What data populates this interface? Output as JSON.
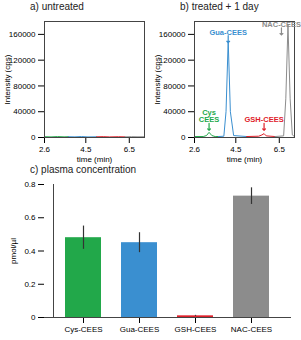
{
  "chart_data": [
    {
      "type": "line",
      "title": "a) untreated",
      "x_label": "time (min)",
      "y_label": "Intensity (cps)",
      "xlim": [
        2.6,
        7.2
      ],
      "ylim": [
        0,
        180000
      ],
      "xticks": [
        2.6,
        4.5,
        6.5
      ],
      "yticks": [
        0,
        40000,
        80000,
        120000,
        160000
      ],
      "series": [
        {
          "color": "#22a84a",
          "x": [
            2.6,
            2.9,
            3.2,
            3.5,
            3.7
          ],
          "values": [
            1200,
            900,
            1400,
            1000,
            1200
          ]
        },
        {
          "color": "#3a8fd0",
          "x": [
            3.7,
            4.0,
            4.3,
            4.6,
            5.0
          ],
          "values": [
            1200,
            1000,
            1500,
            900,
            1100
          ]
        },
        {
          "color": "#e0202a",
          "x": [
            5.0,
            5.3,
            5.6,
            6.0,
            6.3
          ],
          "values": [
            1100,
            1300,
            900,
            1200,
            1000
          ]
        },
        {
          "color": "#8c8c8c",
          "x": [
            6.3,
            6.6,
            6.9,
            7.2
          ],
          "values": [
            1000,
            1300,
            1100,
            1200
          ]
        }
      ]
    },
    {
      "type": "line",
      "title": "b) treated + 1 day",
      "x_label": "time (min)",
      "y_label": "Intensity (cps)",
      "xlim": [
        2.6,
        7.2
      ],
      "ylim": [
        0,
        180000
      ],
      "xticks": [
        2.6,
        4.5,
        6.5
      ],
      "yticks": [
        0,
        40000,
        80000,
        120000,
        160000
      ],
      "series": [
        {
          "color": "#22a84a",
          "x": [
            2.6,
            3.0,
            3.15,
            3.27,
            3.4,
            3.55,
            3.7
          ],
          "values": [
            1500,
            1500,
            3000,
            8000,
            3000,
            1500,
            1500
          ]
        },
        {
          "color": "#3a8fd0",
          "x": [
            3.7,
            3.95,
            4.05,
            4.15,
            4.25,
            4.4,
            5.0
          ],
          "values": [
            1500,
            2000,
            40000,
            150000,
            40000,
            3000,
            1500
          ]
        },
        {
          "color": "#e0202a",
          "x": [
            5.0,
            5.55,
            5.7,
            5.8,
            5.9,
            6.3
          ],
          "values": [
            1500,
            2000,
            4000,
            6000,
            2500,
            1500
          ]
        },
        {
          "color": "#8c8c8c",
          "x": [
            6.3,
            6.7,
            6.8,
            6.9,
            7.0,
            7.1,
            7.2
          ],
          "values": [
            1500,
            2500,
            60000,
            175000,
            60000,
            4000,
            1500
          ]
        }
      ],
      "annotations": [
        {
          "text": "Cys\nCEES",
          "x": 3.27,
          "y": 22000,
          "color": "#22a84a"
        },
        {
          "text": "Gua-CEES",
          "x": 4.15,
          "y": 158000,
          "color": "#3a8fd0"
        },
        {
          "text": "GSH-CEES",
          "x": 5.8,
          "y": 22000,
          "color": "#e0202a"
        },
        {
          "text": "NAC-CEES",
          "x": 6.6,
          "y": 170000,
          "color": "#8c8c8c"
        }
      ]
    },
    {
      "type": "bar",
      "title": "c) plasma concentration",
      "y_label": "pmol/µl",
      "categories": [
        "Cys-CEES",
        "Gua-CEES",
        "GSH-CEES",
        "NAC-CEES"
      ],
      "values": [
        0.48,
        0.45,
        0.01,
        0.73
      ],
      "errors": [
        0.07,
        0.06,
        0.003,
        0.05
      ],
      "colors": [
        "#22a84a",
        "#3a8fd0",
        "#e0202a",
        "#8c8c8c"
      ],
      "ylim": [
        0,
        0.8
      ],
      "yticks": [
        0,
        0.2,
        0.4,
        0.6,
        0.8
      ]
    }
  ]
}
